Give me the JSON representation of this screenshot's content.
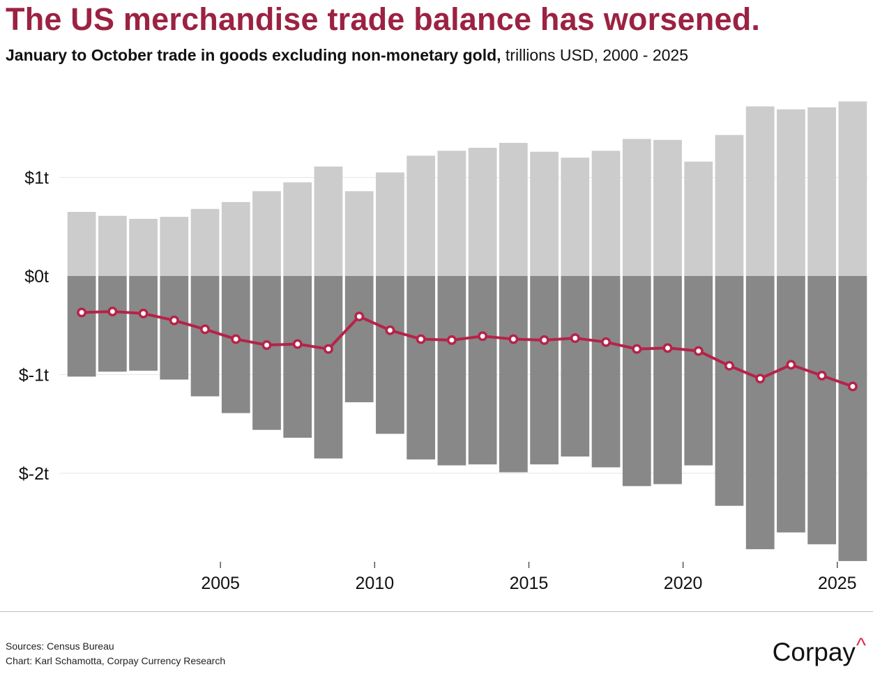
{
  "header": {
    "title": "The US merchandise trade balance has worsened.",
    "subtitle_bold": "January to October trade in goods excluding non-monetary gold,",
    "subtitle_rest": " trillions USD, 2000 - 2025"
  },
  "footer": {
    "sources": "Sources: Census Bureau",
    "credit": "Chart: Karl Schamotta, Corpay Currency Research",
    "logo_text": "Corpay",
    "logo_mark": "^"
  },
  "colors": {
    "exports": "#cccccc",
    "imports": "#888888",
    "balance": "#b52349",
    "title": "#9b2242",
    "grid": "#e6e6e6"
  },
  "chart_data": {
    "type": "bar",
    "x": [
      2000,
      2001,
      2002,
      2003,
      2004,
      2005,
      2006,
      2007,
      2008,
      2009,
      2010,
      2011,
      2012,
      2013,
      2014,
      2015,
      2016,
      2017,
      2018,
      2019,
      2020,
      2021,
      2022,
      2023,
      2024,
      2025
    ],
    "series": [
      {
        "values": [
          0.65,
          0.61,
          0.58,
          0.6,
          0.68,
          0.75,
          0.86,
          0.95,
          1.11,
          0.86,
          1.05,
          1.22,
          1.27,
          1.3,
          1.35,
          1.26,
          1.2,
          1.27,
          1.39,
          1.38,
          1.16,
          1.43,
          1.72,
          1.69,
          1.71,
          1.77
        ]
      },
      {
        "values": [
          -1.02,
          -0.97,
          -0.96,
          -1.05,
          -1.22,
          -1.39,
          -1.56,
          -1.64,
          -1.85,
          -1.28,
          -1.6,
          -1.86,
          -1.92,
          -1.91,
          -1.99,
          -1.91,
          -1.83,
          -1.94,
          -2.13,
          -2.11,
          -1.92,
          -2.33,
          -2.77,
          -2.6,
          -2.72,
          -2.89
        ]
      },
      {
        "values": [
          -0.37,
          -0.36,
          -0.38,
          -0.45,
          -0.54,
          -0.64,
          -0.7,
          -0.69,
          -0.74,
          -0.41,
          -0.55,
          -0.64,
          -0.65,
          -0.61,
          -0.64,
          -0.65,
          -0.63,
          -0.67,
          -0.74,
          -0.73,
          -0.76,
          -0.91,
          -1.04,
          -0.9,
          -1.01,
          -1.12
        ]
      }
    ],
    "y_ticks": [
      1,
      0,
      -1,
      -2
    ],
    "y_tick_labels": [
      "$1t",
      "$0t",
      "$-1t",
      "$-2t"
    ],
    "x_ticks": [
      2005,
      2010,
      2015,
      2020,
      2025
    ],
    "x_tick_labels": [
      "2005",
      "2010",
      "2015",
      "2020",
      "2025"
    ],
    "ylim": [
      -2.9,
      1.8
    ],
    "xlim": [
      1999.5,
      2025.5
    ],
    "grid": true,
    "legend": "none"
  }
}
